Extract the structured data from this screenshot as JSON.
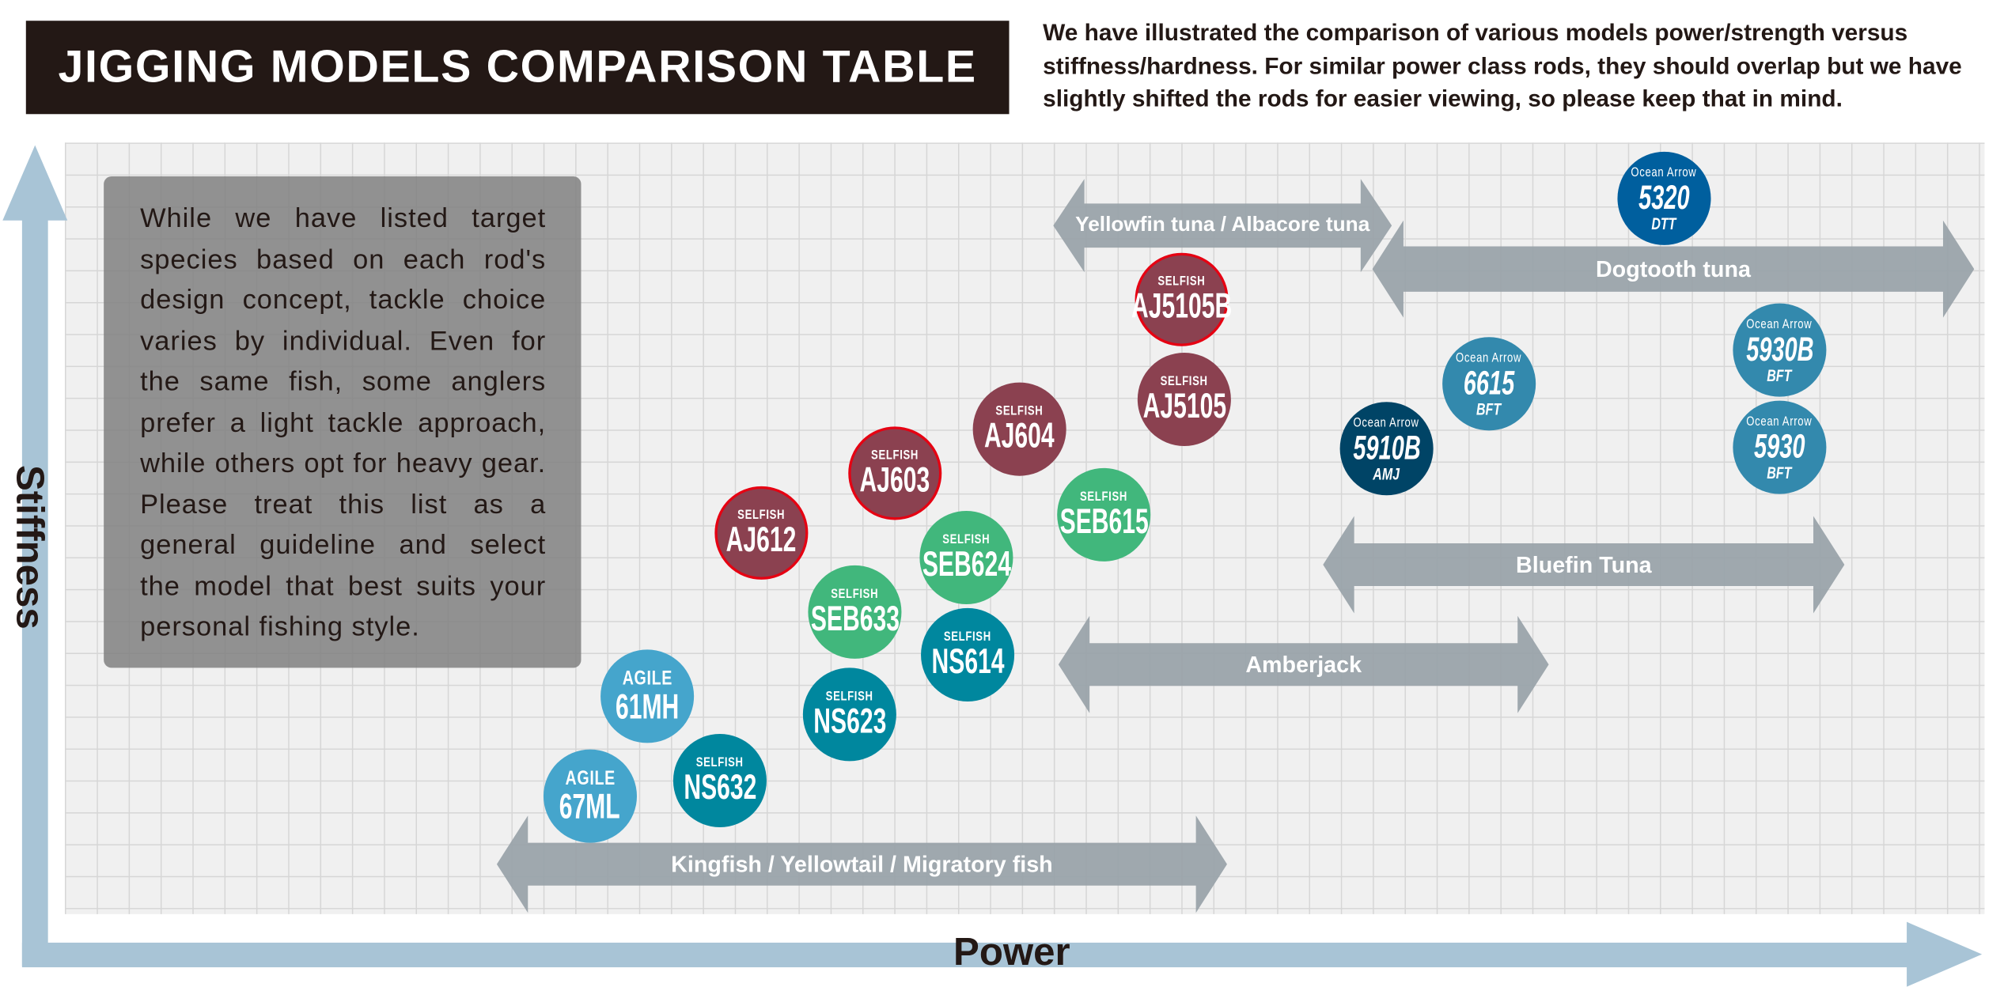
{
  "header": {
    "title": "JIGGING MODELS COMPARISON TABLE",
    "description": "We have illustrated the comparison of various models power/strength versus stiffness/hardness. For similar power class rods, they should overlap but we have slightly shifted the rods for easier viewing, so please keep that in mind."
  },
  "axes": {
    "y_label": "Stiffness",
    "x_label": "Power",
    "color": "#a8c4d6"
  },
  "note": "While we have listed target species based on each rod's design concept, tackle choice varies by individual. Even for the same fish, some anglers prefer a light tackle approach, while others opt for heavy gear. Please treat this list as a general guideline and select the model that best suits your personal fishing style.",
  "species": [
    {
      "label": "Yellowfin tuna / Albacore tuna"
    },
    {
      "label": "Dogtooth tuna"
    },
    {
      "label": "Bluefin Tuna"
    },
    {
      "label": "Amberjack"
    },
    {
      "label": "Kingfish / Yellowtail / Migratory fish"
    }
  ],
  "colors": {
    "selfish_aj": "#8b4150",
    "selfish_seb": "#41b77c",
    "selfish_ns": "#00879e",
    "agile": "#45a5cc",
    "ocean_arrow_light": "#3389ad",
    "ocean_arrow_dtt": "#005f9e",
    "ocean_arrow_amj": "#004466",
    "arrow": "#9aa3aa",
    "highlight_border": "#e60012"
  },
  "models": [
    {
      "brand": "Ocean Arrow",
      "model": "5320",
      "sub": "DTT",
      "color": "#005f9e"
    },
    {
      "brand": "SELFISH",
      "model": "AJ5105B",
      "sub": "",
      "color": "#8b4150",
      "highlight": true
    },
    {
      "brand": "SELFISH",
      "model": "AJ5105",
      "sub": "",
      "color": "#8b4150"
    },
    {
      "brand": "Ocean Arrow",
      "model": "6615",
      "sub": "BFT",
      "color": "#3389ad"
    },
    {
      "brand": "Ocean Arrow",
      "model": "5930B",
      "sub": "BFT",
      "color": "#3389ad"
    },
    {
      "brand": "Ocean Arrow",
      "model": "5930",
      "sub": "BFT",
      "color": "#3389ad"
    },
    {
      "brand": "Ocean Arrow",
      "model": "5910B",
      "sub": "AMJ",
      "color": "#004466"
    },
    {
      "brand": "SELFISH",
      "model": "AJ604",
      "sub": "",
      "color": "#8b4150"
    },
    {
      "brand": "SELFISH",
      "model": "AJ603",
      "sub": "",
      "color": "#8b4150",
      "highlight": true
    },
    {
      "brand": "SELFISH",
      "model": "AJ612",
      "sub": "",
      "color": "#8b4150",
      "highlight": true
    },
    {
      "brand": "SELFISH",
      "model": "SEB615",
      "sub": "",
      "color": "#41b77c"
    },
    {
      "brand": "SELFISH",
      "model": "SEB624",
      "sub": "",
      "color": "#41b77c"
    },
    {
      "brand": "SELFISH",
      "model": "SEB633",
      "sub": "",
      "color": "#41b77c"
    },
    {
      "brand": "SELFISH",
      "model": "NS614",
      "sub": "",
      "color": "#00879e"
    },
    {
      "brand": "SELFISH",
      "model": "NS623",
      "sub": "",
      "color": "#00879e"
    },
    {
      "brand": "SELFISH",
      "model": "NS632",
      "sub": "",
      "color": "#00879e"
    },
    {
      "brand": "AGILE",
      "model": "61MH",
      "sub": "",
      "color": "#45a5cc"
    },
    {
      "brand": "AGILE",
      "model": "67ML",
      "sub": "",
      "color": "#45a5cc"
    }
  ]
}
